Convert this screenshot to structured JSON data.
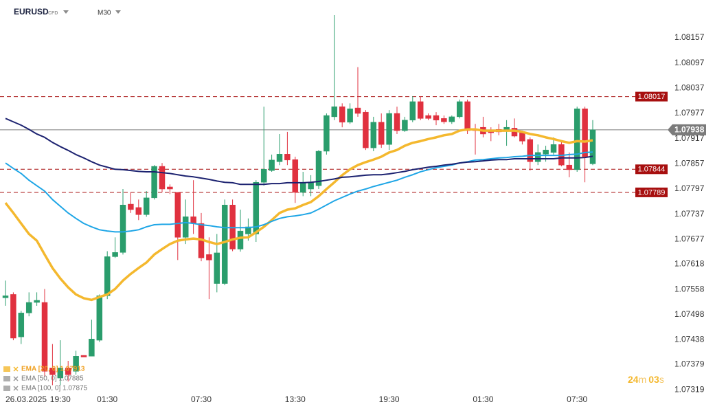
{
  "chart_data": {
    "type": "candlestick",
    "symbol": "EURUSD",
    "instrument_type": "CFD",
    "timeframe": "M30",
    "date_label": "26.03.2025",
    "categories": [
      null,
      null,
      null,
      null,
      null,
      null,
      null,
      "19:30",
      null,
      null,
      null,
      null,
      null,
      "01:30",
      null,
      null,
      null,
      null,
      null,
      null,
      null,
      null,
      null,
      null,
      null,
      "07:30",
      null,
      null,
      null,
      null,
      null,
      null,
      null,
      null,
      null,
      null,
      null,
      "13:30",
      null,
      null,
      null,
      null,
      null,
      null,
      null,
      null,
      null,
      null,
      null,
      "19:30",
      null,
      null,
      null,
      null,
      null,
      null,
      null,
      null,
      null,
      null,
      null,
      "01:30",
      null,
      null,
      null,
      null,
      null,
      null,
      null,
      null,
      null,
      null,
      null,
      "07:30",
      null,
      null
    ],
    "open": [
      1.07538,
      1.07546,
      1.07445,
      1.07502,
      1.07527,
      1.07527,
      1.07371,
      1.07347,
      1.07371,
      1.07363,
      1.07401,
      1.07399,
      1.07437,
      1.07543,
      1.07636,
      1.07646,
      1.07761,
      1.07753,
      1.07736,
      1.07776,
      1.07851,
      1.07802,
      1.07789,
      1.07682,
      1.07731,
      1.07715,
      1.07641,
      1.07572,
      1.07572,
      1.07759,
      1.07654,
      1.0769,
      1.0769,
      1.07813,
      1.07841,
      1.07862,
      1.0788,
      1.07867,
      1.07789,
      1.07797,
      1.07805,
      1.07887,
      1.07969,
      1.07993,
      1.07956,
      1.0799,
      1.0798,
      1.07895,
      1.07956,
      1.07903,
      1.07977,
      1.07936,
      1.07961,
      1.08005,
      1.07972,
      1.07972,
      1.07965,
      1.07957,
      1.07969,
      1.08005,
      1.07939,
      1.07944,
      1.07936,
      1.07939,
      1.07936,
      1.07942,
      1.07931,
      1.07915,
      1.07862,
      1.0788,
      1.07884,
      1.07903,
      1.07854,
      1.07843,
      1.07988,
      1.07857
    ],
    "high": [
      1.07579,
      1.07551,
      1.07507,
      1.07551,
      1.07551,
      1.07559,
      1.07428,
      1.07437,
      1.07388,
      1.07412,
      1.07401,
      1.07486,
      1.07546,
      1.07649,
      1.07682,
      1.07797,
      1.07789,
      1.07772,
      1.07792,
      1.07854,
      1.07859,
      1.07808,
      1.07789,
      1.07772,
      1.07818,
      1.0774,
      1.07682,
      1.0769,
      1.07772,
      1.07772,
      1.07748,
      1.07727,
      1.07818,
      1.07993,
      1.07879,
      1.07928,
      1.07933,
      1.07874,
      1.07838,
      1.0783,
      1.0789,
      1.07977,
      1.08211,
      1.08001,
      1.08001,
      1.08087,
      1.07985,
      1.07969,
      1.07977,
      1.07985,
      1.07993,
      1.07969,
      1.08018,
      1.08018,
      1.07977,
      1.0798,
      1.07972,
      1.07972,
      1.0801,
      1.0801,
      1.07952,
      1.07969,
      1.07944,
      1.07952,
      1.07961,
      1.07965,
      1.07936,
      1.0792,
      1.07903,
      1.079,
      1.0792,
      1.07911,
      1.07884,
      1.07993,
      1.07993,
      1.07961
    ],
    "low": [
      1.07519,
      1.07437,
      1.07428,
      1.07494,
      1.07519,
      1.0735,
      1.0733,
      1.0733,
      1.07339,
      1.07355,
      1.07397,
      1.07399,
      1.07433,
      1.07535,
      1.07633,
      1.07641,
      1.0774,
      1.07723,
      1.07731,
      1.07772,
      1.07789,
      1.07785,
      1.07628,
      1.07666,
      1.0769,
      1.07625,
      1.07535,
      1.07551,
      1.07568,
      1.07649,
      1.07648,
      1.07674,
      1.07671,
      1.07805,
      1.07838,
      1.07854,
      1.07854,
      1.07764,
      1.0778,
      1.0778,
      1.07797,
      1.07879,
      1.07961,
      1.07944,
      1.07952,
      1.07969,
      1.0789,
      1.07887,
      1.07895,
      1.0789,
      1.07928,
      1.07933,
      1.07956,
      1.07961,
      1.07961,
      1.07949,
      1.07952,
      1.07952,
      1.07965,
      1.07928,
      1.07879,
      1.0792,
      1.07911,
      1.07925,
      1.079,
      1.0792,
      1.07903,
      1.07841,
      1.07854,
      1.07862,
      1.07879,
      1.07851,
      1.07825,
      1.07838,
      1.07813,
      1.07854
    ],
    "close": [
      1.07543,
      1.07442,
      1.07502,
      1.07527,
      1.07532,
      1.07363,
      1.07355,
      1.07371,
      1.07355,
      1.07399,
      1.07397,
      1.0744,
      1.07543,
      1.07636,
      1.07646,
      1.07759,
      1.07748,
      1.07736,
      1.07776,
      1.07851,
      1.07797,
      1.07797,
      1.07682,
      1.07731,
      1.07715,
      1.07633,
      1.07628,
      1.07645,
      1.07759,
      1.07654,
      1.07697,
      1.07707,
      1.07813,
      1.07844,
      1.07866,
      1.0788,
      1.07866,
      1.07789,
      1.07812,
      1.07812,
      1.07887,
      1.07972,
      1.07993,
      1.07956,
      1.07988,
      1.07977,
      1.07895,
      1.07956,
      1.07903,
      1.07977,
      1.07936,
      1.07961,
      1.08005,
      1.07965,
      1.07965,
      1.07961,
      1.07957,
      1.07969,
      1.08005,
      1.07936,
      1.07936,
      1.07928,
      1.07931,
      1.07933,
      1.07944,
      1.07923,
      1.07911,
      1.07862,
      1.07884,
      1.0789,
      1.07903,
      1.07854,
      1.07843,
      1.07988,
      1.07874,
      1.07938
    ],
    "up_color": "#2a9d6c",
    "down_color": "#e0313f",
    "series": [
      {
        "name": "EMA [20, 0] 1.07913",
        "color": "#f4b82e",
        "values": [
          1.07764,
          1.0774,
          1.07715,
          1.0769,
          1.07674,
          1.07641,
          1.07609,
          1.07584,
          1.07563,
          1.07546,
          1.07537,
          1.07533,
          1.0754,
          1.07546,
          1.07559,
          1.07579,
          1.07595,
          1.07609,
          1.07622,
          1.07641,
          1.07654,
          1.07666,
          1.07674,
          1.07677,
          1.07679,
          1.07677,
          1.07671,
          1.07666,
          1.07671,
          1.07677,
          1.07681,
          1.07682,
          1.07694,
          1.07707,
          1.07723,
          1.0774,
          1.07748,
          1.07751,
          1.07759,
          1.07766,
          1.0778,
          1.07797,
          1.07813,
          1.0783,
          1.07844,
          1.07854,
          1.07861,
          1.07867,
          1.07874,
          1.07884,
          1.0789,
          1.079,
          1.07907,
          1.07911,
          1.07916,
          1.0792,
          1.07925,
          1.07928,
          1.07936,
          1.07939,
          1.07939,
          1.07936,
          1.07936,
          1.07936,
          1.07936,
          1.07936,
          1.07933,
          1.07928,
          1.07925,
          1.0792,
          1.07916,
          1.07911,
          1.07907,
          1.07911,
          1.0791,
          1.07913
        ]
      },
      {
        "name": "EMA [50, 0] 1.07885",
        "color": "#1fa6e6",
        "values": [
          1.07859,
          1.07846,
          1.07834,
          1.07818,
          1.07805,
          1.07792,
          1.07772,
          1.07756,
          1.0774,
          1.07727,
          1.07715,
          1.07707,
          1.077,
          1.07697,
          1.07695,
          1.07695,
          1.07697,
          1.077,
          1.07707,
          1.07712,
          1.07713,
          1.07713,
          1.07715,
          1.07717,
          1.07715,
          1.07712,
          1.0771,
          1.07707,
          1.07705,
          1.07705,
          1.07705,
          1.07705,
          1.07707,
          1.07712,
          1.0772,
          1.07727,
          1.07731,
          1.07733,
          1.07736,
          1.0774,
          1.07749,
          1.07759,
          1.07769,
          1.07777,
          1.07785,
          1.07792,
          1.07797,
          1.07803,
          1.07808,
          1.07813,
          1.07818,
          1.07825,
          1.07831,
          1.07838,
          1.07843,
          1.07848,
          1.07851,
          1.07854,
          1.07859,
          1.07862,
          1.07866,
          1.07867,
          1.07869,
          1.07871,
          1.07872,
          1.07874,
          1.07875,
          1.07877,
          1.07877,
          1.07877,
          1.07877,
          1.07877,
          1.07879,
          1.0788,
          1.07884,
          1.07885
        ]
      },
      {
        "name": "EMA [100, 0] 1.07875",
        "color": "#1c2270",
        "values": [
          1.07965,
          1.07957,
          1.07949,
          1.07939,
          1.07928,
          1.0792,
          1.07908,
          1.07898,
          1.07889,
          1.07879,
          1.07871,
          1.07862,
          1.07854,
          1.07849,
          1.07844,
          1.07843,
          1.07841,
          1.07839,
          1.07838,
          1.07838,
          1.07836,
          1.07834,
          1.07831,
          1.07828,
          1.07826,
          1.07823,
          1.0782,
          1.07816,
          1.07813,
          1.07812,
          1.07808,
          1.07808,
          1.07808,
          1.07808,
          1.0781,
          1.0781,
          1.07812,
          1.07812,
          1.07812,
          1.07813,
          1.07815,
          1.07818,
          1.07821,
          1.07825,
          1.07826,
          1.07828,
          1.0783,
          1.07831,
          1.07831,
          1.07833,
          1.07836,
          1.07839,
          1.07843,
          1.07846,
          1.07849,
          1.07851,
          1.07854,
          1.07856,
          1.07859,
          1.07861,
          1.07862,
          1.07864,
          1.07866,
          1.07867,
          1.07867,
          1.07869,
          1.07869,
          1.07869,
          1.07869,
          1.07869,
          1.07869,
          1.07871,
          1.07871,
          1.07871,
          1.07872,
          1.07875
        ]
      }
    ],
    "ylim": [
      1.07298,
      1.08247
    ],
    "yticks": [
      1.08157,
      1.08097,
      1.08037,
      1.07977,
      1.07917,
      1.07857,
      1.07797,
      1.07737,
      1.07677,
      1.07618,
      1.07558,
      1.07498,
      1.07438,
      1.07379,
      1.07319
    ],
    "levels": [
      {
        "value": 1.08017,
        "color": "#a70f0f"
      },
      {
        "value": 1.07844,
        "color": "#a70f0f"
      },
      {
        "value": 1.07789,
        "color": "#a70f0f"
      }
    ],
    "current_price": 1.07938,
    "current_color": "#7b7b7b",
    "countdown": [
      "24",
      "m",
      "03",
      "s"
    ],
    "grid": false
  }
}
